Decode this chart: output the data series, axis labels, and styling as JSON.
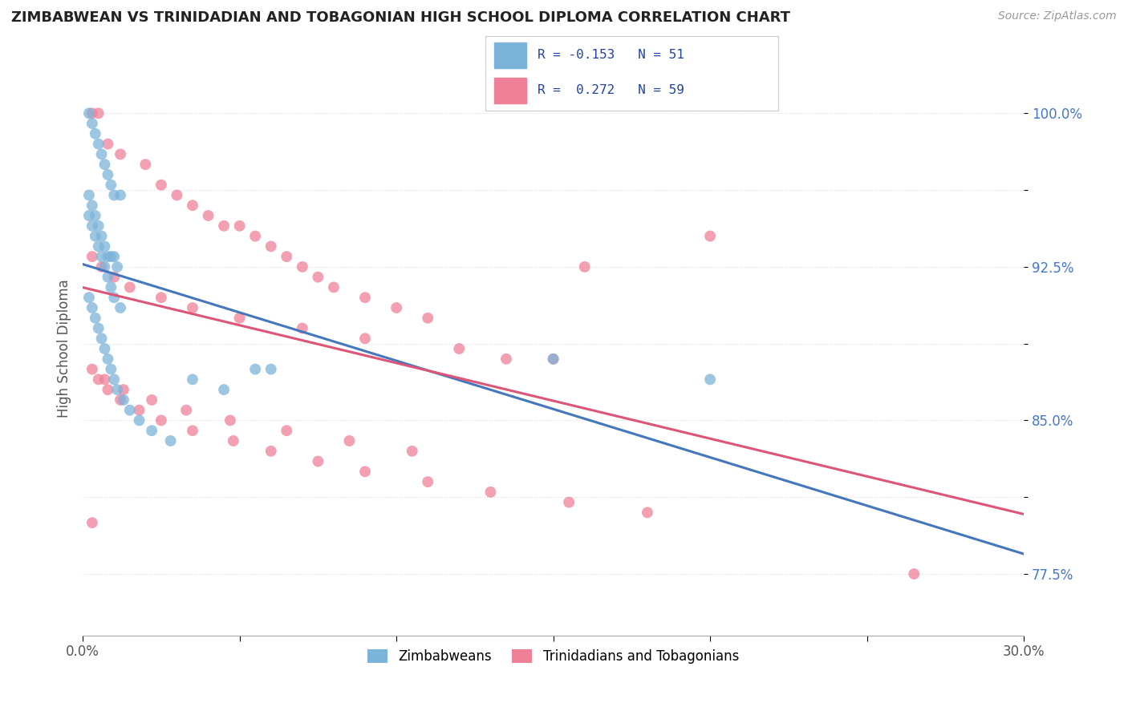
{
  "title": "ZIMBABWEAN VS TRINIDADIAN AND TOBAGONIAN HIGH SCHOOL DIPLOMA CORRELATION CHART",
  "source": "Source: ZipAtlas.com",
  "ylabel": "High School Diploma",
  "xlim": [
    0.0,
    0.3
  ],
  "ylim": [
    0.745,
    1.025
  ],
  "xtick_positions": [
    0.0,
    0.05,
    0.1,
    0.15,
    0.2,
    0.25,
    0.3
  ],
  "xtick_labels": [
    "0.0%",
    "",
    "",
    "",
    "",
    "",
    "30.0%"
  ],
  "ytick_positions": [
    0.775,
    0.8125,
    0.85,
    0.8875,
    0.925,
    0.9625,
    1.0
  ],
  "ytick_labels": [
    "77.5%",
    "",
    "85.0%",
    "",
    "92.5%",
    "",
    "100.0%"
  ],
  "zim_color": "#7bb3d9",
  "trin_color": "#f08098",
  "zim_line_color": "#4477bb",
  "trin_line_color": "#dd5577",
  "dashed_line_color": "#99bbdd",
  "background_color": "#ffffff",
  "grid_color": "#dddddd",
  "title_color": "#222222",
  "source_color": "#999999",
  "r_zim": -0.153,
  "n_zim": 51,
  "r_trin": 0.272,
  "n_trin": 59,
  "zim_x": [
    0.002,
    0.003,
    0.004,
    0.005,
    0.006,
    0.007,
    0.008,
    0.009,
    0.01,
    0.012,
    0.002,
    0.003,
    0.004,
    0.005,
    0.006,
    0.007,
    0.008,
    0.009,
    0.01,
    0.011,
    0.002,
    0.003,
    0.004,
    0.005,
    0.006,
    0.007,
    0.008,
    0.009,
    0.01,
    0.012,
    0.002,
    0.003,
    0.004,
    0.005,
    0.006,
    0.007,
    0.008,
    0.009,
    0.01,
    0.011,
    0.013,
    0.015,
    0.018,
    0.022,
    0.028,
    0.035,
    0.045,
    0.055,
    0.06,
    0.15,
    0.2
  ],
  "zim_y": [
    1.0,
    0.995,
    0.99,
    0.985,
    0.98,
    0.975,
    0.97,
    0.965,
    0.96,
    0.96,
    0.96,
    0.955,
    0.95,
    0.945,
    0.94,
    0.935,
    0.93,
    0.93,
    0.93,
    0.925,
    0.95,
    0.945,
    0.94,
    0.935,
    0.93,
    0.925,
    0.92,
    0.915,
    0.91,
    0.905,
    0.91,
    0.905,
    0.9,
    0.895,
    0.89,
    0.885,
    0.88,
    0.875,
    0.87,
    0.865,
    0.86,
    0.855,
    0.85,
    0.845,
    0.84,
    0.87,
    0.865,
    0.875,
    0.875,
    0.88,
    0.87
  ],
  "trin_x": [
    0.003,
    0.005,
    0.008,
    0.012,
    0.02,
    0.025,
    0.03,
    0.035,
    0.04,
    0.045,
    0.05,
    0.055,
    0.06,
    0.065,
    0.07,
    0.075,
    0.08,
    0.09,
    0.1,
    0.11,
    0.003,
    0.006,
    0.01,
    0.015,
    0.025,
    0.035,
    0.05,
    0.07,
    0.09,
    0.12,
    0.15,
    0.003,
    0.005,
    0.008,
    0.012,
    0.018,
    0.025,
    0.035,
    0.048,
    0.06,
    0.075,
    0.09,
    0.11,
    0.13,
    0.155,
    0.18,
    0.003,
    0.007,
    0.013,
    0.022,
    0.033,
    0.047,
    0.065,
    0.085,
    0.105,
    0.135,
    0.16,
    0.265,
    0.2
  ],
  "trin_y": [
    1.0,
    1.0,
    0.985,
    0.98,
    0.975,
    0.965,
    0.96,
    0.955,
    0.95,
    0.945,
    0.945,
    0.94,
    0.935,
    0.93,
    0.925,
    0.92,
    0.915,
    0.91,
    0.905,
    0.9,
    0.93,
    0.925,
    0.92,
    0.915,
    0.91,
    0.905,
    0.9,
    0.895,
    0.89,
    0.885,
    0.88,
    0.875,
    0.87,
    0.865,
    0.86,
    0.855,
    0.85,
    0.845,
    0.84,
    0.835,
    0.83,
    0.825,
    0.82,
    0.815,
    0.81,
    0.805,
    0.8,
    0.87,
    0.865,
    0.86,
    0.855,
    0.85,
    0.845,
    0.84,
    0.835,
    0.88,
    0.925,
    0.775,
    0.94
  ],
  "legend_zim_label": "R = -0.153   N = 51",
  "legend_trin_label": "R =  0.272   N = 59",
  "bottom_legend_zim": "Zimbabweans",
  "bottom_legend_trin": "Trinidadians and Tobagonians"
}
